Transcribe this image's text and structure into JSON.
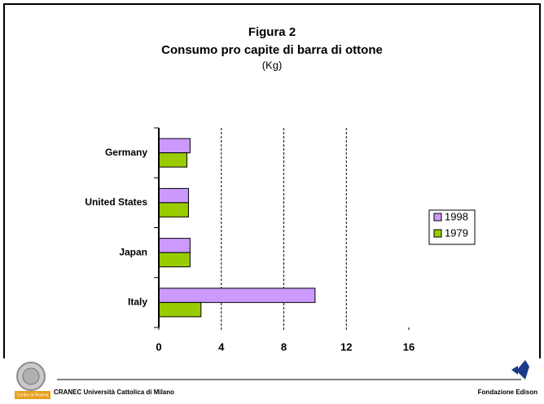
{
  "chart_data": {
    "type": "bar",
    "orientation": "horizontal",
    "title": "Figura 2",
    "subtitle": "Consumo pro capite di barra di ottone",
    "unit_label": "(Kg)",
    "categories": [
      "Germany",
      "United States",
      "Japan",
      "Italy"
    ],
    "series": [
      {
        "name": "1998",
        "color": "#cc99ff",
        "values": [
          2.0,
          1.9,
          2.0,
          10.0
        ]
      },
      {
        "name": "1979",
        "color": "#99cc00",
        "values": [
          1.8,
          1.9,
          2.0,
          2.7
        ]
      }
    ],
    "xlim": [
      0,
      16
    ],
    "xticks": [
      0,
      4,
      8,
      12,
      16
    ],
    "grid": true,
    "legend": "right"
  },
  "footer": {
    "left": "CRANEC Università Cattolica di Milano",
    "right": "Fondazione Edison",
    "logo_caption": "Centro di Ricerca"
  }
}
